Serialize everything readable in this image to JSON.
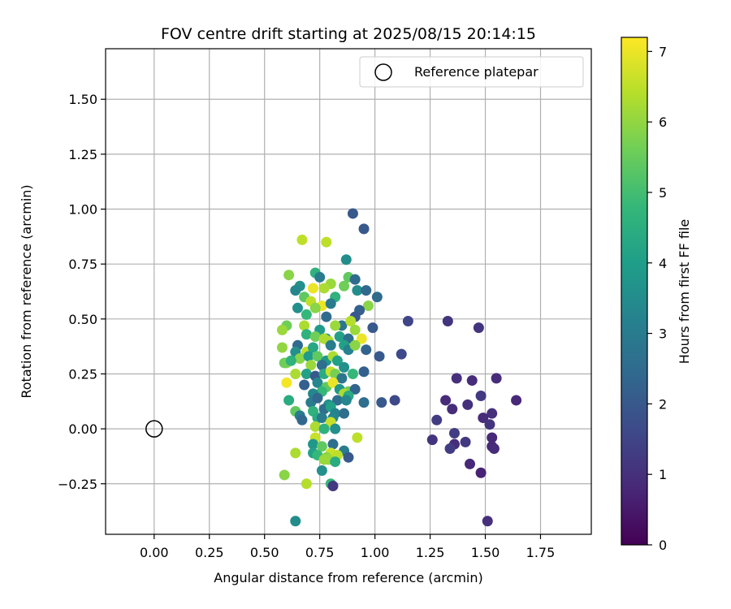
{
  "chart_data": {
    "type": "scatter",
    "title": "FOV centre drift starting at 2025/08/15 20:14:15",
    "xlabel": "Angular distance from reference (arcmin)",
    "ylabel": "Rotation from reference (arcmin)",
    "xlim": [
      -0.22,
      1.98
    ],
    "ylim": [
      -0.48,
      1.73
    ],
    "xticks": [
      0.0,
      0.25,
      0.5,
      0.75,
      1.0,
      1.25,
      1.5,
      1.75
    ],
    "xtick_labels": [
      "0.00",
      "0.25",
      "0.50",
      "0.75",
      "1.00",
      "1.25",
      "1.50",
      "1.75"
    ],
    "yticks": [
      -0.25,
      0.0,
      0.25,
      0.5,
      0.75,
      1.0,
      1.25,
      1.5
    ],
    "ytick_labels": [
      "−0.25",
      "0.00",
      "0.25",
      "0.50",
      "0.75",
      "1.00",
      "1.25",
      "1.50"
    ],
    "grid": true,
    "legend": {
      "placement": "top-right",
      "entries": [
        {
          "label": "Reference platepar",
          "marker": "open-circle"
        }
      ]
    },
    "reference_point": {
      "x": 0.0,
      "y": 0.0
    },
    "colorbar": {
      "label": "Hours from first FF file",
      "colormap": "viridis",
      "min": 0,
      "max": 7.2,
      "ticks": [
        0,
        1,
        2,
        3,
        4,
        5,
        6,
        7
      ],
      "tick_labels": [
        "0",
        "1",
        "2",
        "3",
        "4",
        "5",
        "6",
        "7"
      ],
      "stops": [
        "#440154",
        "#482878",
        "#3e4989",
        "#31688e",
        "#26828e",
        "#1f9e89",
        "#35b779",
        "#6ece58",
        "#b5de2b",
        "#fde725"
      ]
    },
    "points": [
      [
        0.9,
        0.98,
        2.0
      ],
      [
        0.95,
        0.91,
        2.0
      ],
      [
        0.67,
        0.86,
        6.5
      ],
      [
        0.78,
        0.85,
        6.5
      ],
      [
        0.87,
        0.77,
        3.5
      ],
      [
        0.61,
        0.7,
        5.9
      ],
      [
        0.73,
        0.71,
        4.6
      ],
      [
        0.75,
        0.69,
        3.0
      ],
      [
        0.88,
        0.69,
        5.4
      ],
      [
        0.91,
        0.68,
        2.5
      ],
      [
        0.8,
        0.66,
        6.1
      ],
      [
        0.86,
        0.65,
        5.6
      ],
      [
        0.66,
        0.65,
        3.6
      ],
      [
        0.64,
        0.63,
        3.3
      ],
      [
        0.72,
        0.64,
        7.0
      ],
      [
        0.77,
        0.64,
        6.3
      ],
      [
        0.92,
        0.63,
        3.5
      ],
      [
        0.96,
        0.63,
        2.4
      ],
      [
        0.82,
        0.6,
        4.6
      ],
      [
        1.01,
        0.6,
        2.5
      ],
      [
        0.68,
        0.6,
        5.4
      ],
      [
        0.71,
        0.58,
        6.5
      ],
      [
        0.76,
        0.56,
        7.0
      ],
      [
        0.8,
        0.57,
        3.0
      ],
      [
        0.97,
        0.56,
        5.9
      ],
      [
        0.65,
        0.55,
        3.6
      ],
      [
        0.73,
        0.55,
        5.9
      ],
      [
        0.93,
        0.54,
        2.2
      ],
      [
        0.69,
        0.52,
        4.8
      ],
      [
        0.78,
        0.51,
        2.5
      ],
      [
        0.91,
        0.51,
        2.0
      ],
      [
        1.15,
        0.49,
        1.5
      ],
      [
        1.33,
        0.49,
        1.1
      ],
      [
        0.6,
        0.47,
        5.6
      ],
      [
        0.85,
        0.47,
        2.8
      ],
      [
        0.89,
        0.49,
        6.4
      ],
      [
        0.58,
        0.45,
        6.1
      ],
      [
        0.68,
        0.47,
        6.3
      ],
      [
        0.75,
        0.45,
        3.9
      ],
      [
        0.82,
        0.47,
        6.1
      ],
      [
        0.91,
        0.45,
        6.1
      ],
      [
        0.99,
        0.46,
        2.0
      ],
      [
        1.47,
        0.46,
        1.1
      ],
      [
        0.69,
        0.43,
        4.6
      ],
      [
        0.73,
        0.42,
        5.6
      ],
      [
        0.78,
        0.41,
        3.3
      ],
      [
        0.84,
        0.42,
        4.1
      ],
      [
        0.88,
        0.41,
        2.6
      ],
      [
        0.94,
        0.41,
        7.0
      ],
      [
        0.65,
        0.38,
        2.5
      ],
      [
        0.79,
        0.4,
        6.3
      ],
      [
        0.77,
        0.41,
        6.3
      ],
      [
        0.86,
        0.38,
        4.1
      ],
      [
        0.58,
        0.37,
        6.0
      ],
      [
        0.64,
        0.35,
        3.6
      ],
      [
        0.69,
        0.35,
        6.5
      ],
      [
        0.72,
        0.37,
        4.3
      ],
      [
        0.8,
        0.38,
        3.0
      ],
      [
        0.88,
        0.36,
        3.2
      ],
      [
        0.91,
        0.38,
        5.9
      ],
      [
        0.96,
        0.36,
        2.3
      ],
      [
        1.02,
        0.33,
        2.0
      ],
      [
        1.12,
        0.34,
        1.6
      ],
      [
        0.6,
        0.3,
        5.9
      ],
      [
        0.66,
        0.32,
        5.9
      ],
      [
        0.7,
        0.33,
        3.9
      ],
      [
        0.74,
        0.33,
        5.4
      ],
      [
        0.78,
        0.31,
        3.8
      ],
      [
        0.81,
        0.33,
        6.3
      ],
      [
        0.83,
        0.31,
        4.1
      ],
      [
        0.76,
        0.29,
        2.6
      ],
      [
        0.71,
        0.29,
        6.1
      ],
      [
        0.59,
        0.3,
        5.6
      ],
      [
        0.62,
        0.31,
        4.6
      ],
      [
        0.86,
        0.28,
        3.6
      ],
      [
        0.64,
        0.25,
        6.3
      ],
      [
        0.69,
        0.25,
        4.1
      ],
      [
        0.73,
        0.24,
        2.0
      ],
      [
        0.77,
        0.25,
        4.4
      ],
      [
        0.8,
        0.26,
        6.6
      ],
      [
        0.82,
        0.25,
        5.7
      ],
      [
        0.85,
        0.23,
        2.8
      ],
      [
        0.9,
        0.25,
        4.8
      ],
      [
        0.95,
        0.26,
        2.2
      ],
      [
        1.37,
        0.23,
        1.0
      ],
      [
        1.44,
        0.22,
        0.9
      ],
      [
        1.55,
        0.23,
        0.9
      ],
      [
        0.6,
        0.21,
        7.1
      ],
      [
        0.68,
        0.2,
        2.2
      ],
      [
        0.74,
        0.21,
        3.3
      ],
      [
        0.78,
        0.19,
        5.4
      ],
      [
        0.81,
        0.21,
        7.0
      ],
      [
        0.84,
        0.18,
        3.8
      ],
      [
        0.88,
        0.17,
        5.6
      ],
      [
        0.91,
        0.18,
        2.3
      ],
      [
        0.76,
        0.17,
        4.8
      ],
      [
        0.72,
        0.16,
        3.3
      ],
      [
        0.86,
        0.16,
        6.3
      ],
      [
        0.88,
        0.15,
        4.4
      ],
      [
        1.48,
        0.15,
        1.2
      ],
      [
        0.61,
        0.13,
        4.4
      ],
      [
        0.71,
        0.12,
        3.0
      ],
      [
        0.74,
        0.14,
        2.4
      ],
      [
        0.79,
        0.11,
        3.6
      ],
      [
        0.83,
        0.13,
        2.6
      ],
      [
        0.87,
        0.13,
        3.3
      ],
      [
        0.95,
        0.12,
        2.6
      ],
      [
        1.03,
        0.12,
        2.0
      ],
      [
        1.09,
        0.13,
        1.6
      ],
      [
        1.32,
        0.13,
        0.9
      ],
      [
        1.42,
        0.11,
        1.0
      ],
      [
        1.64,
        0.13,
        0.8
      ],
      [
        0.64,
        0.08,
        5.4
      ],
      [
        0.72,
        0.08,
        4.6
      ],
      [
        0.77,
        0.09,
        2.6
      ],
      [
        0.8,
        0.1,
        4.1
      ],
      [
        0.82,
        0.07,
        3.2
      ],
      [
        0.86,
        0.07,
        2.6
      ],
      [
        1.35,
        0.09,
        0.9
      ],
      [
        1.53,
        0.07,
        1.0
      ],
      [
        0.66,
        0.06,
        3.0
      ],
      [
        0.74,
        0.05,
        4.4
      ],
      [
        0.81,
        0.05,
        3.3
      ],
      [
        1.49,
        0.05,
        0.9
      ],
      [
        0.67,
        0.04,
        2.4
      ],
      [
        0.76,
        0.05,
        3.0
      ],
      [
        0.8,
        0.03,
        6.6
      ],
      [
        1.28,
        0.04,
        1.3
      ],
      [
        1.52,
        0.02,
        1.1
      ],
      [
        0.73,
        0.01,
        6.3
      ],
      [
        0.77,
        0.0,
        4.6
      ],
      [
        0.82,
        0.0,
        3.6
      ],
      [
        1.36,
        -0.02,
        1.3
      ],
      [
        1.53,
        -0.04,
        0.8
      ],
      [
        0.73,
        -0.04,
        6.6
      ],
      [
        0.92,
        -0.04,
        6.5
      ],
      [
        1.26,
        -0.05,
        1.1
      ],
      [
        1.41,
        -0.06,
        1.2
      ],
      [
        0.72,
        -0.07,
        3.8
      ],
      [
        0.81,
        -0.07,
        2.6
      ],
      [
        0.76,
        -0.08,
        5.4
      ],
      [
        1.36,
        -0.07,
        0.9
      ],
      [
        1.53,
        -0.08,
        0.8
      ],
      [
        1.34,
        -0.09,
        1.3
      ],
      [
        1.54,
        -0.09,
        0.9
      ],
      [
        0.64,
        -0.11,
        6.3
      ],
      [
        0.72,
        -0.11,
        4.1
      ],
      [
        0.8,
        -0.11,
        6.6
      ],
      [
        0.74,
        -0.12,
        4.8
      ],
      [
        0.78,
        -0.13,
        5.9
      ],
      [
        0.86,
        -0.1,
        3.0
      ],
      [
        0.83,
        -0.12,
        6.5
      ],
      [
        0.88,
        -0.13,
        2.0
      ],
      [
        0.77,
        -0.14,
        6.1
      ],
      [
        0.79,
        -0.14,
        6.1
      ],
      [
        0.82,
        -0.15,
        4.4
      ],
      [
        1.43,
        -0.16,
        0.8
      ],
      [
        0.76,
        -0.19,
        3.6
      ],
      [
        1.48,
        -0.2,
        0.7
      ],
      [
        0.59,
        -0.21,
        5.9
      ],
      [
        0.69,
        -0.25,
        6.4
      ],
      [
        0.8,
        -0.25,
        4.8
      ],
      [
        0.81,
        -0.26,
        1.2
      ],
      [
        0.64,
        -0.42,
        3.5
      ],
      [
        1.51,
        -0.42,
        1.0
      ]
    ]
  }
}
